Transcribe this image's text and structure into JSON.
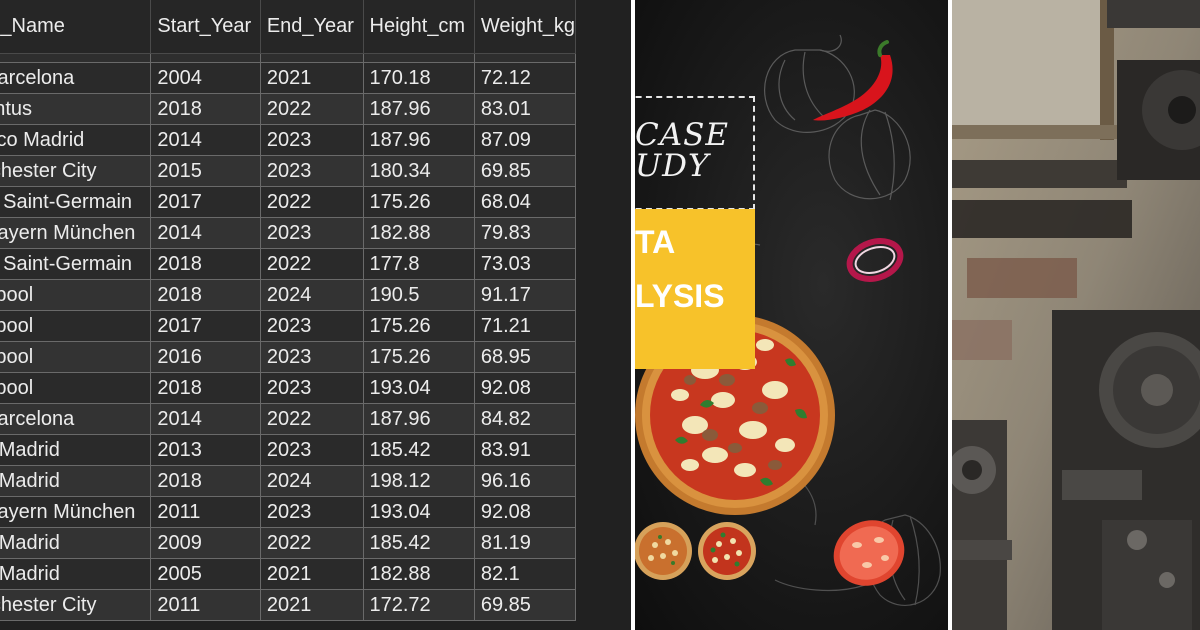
{
  "table": {
    "headers": [
      "Team_Name",
      "Start_Year",
      "End_Year",
      "Height_cm",
      "Weight_kg"
    ],
    "rows": [
      [
        "FC Barcelona",
        "2004",
        "2021",
        "170.18",
        "72.12"
      ],
      [
        "Juventus",
        "2018",
        "2022",
        "187.96",
        "83.01"
      ],
      [
        "Atletico Madrid",
        "2014",
        "2023",
        "187.96",
        "87.09"
      ],
      [
        "Manchester City",
        "2015",
        "2023",
        "180.34",
        "69.85"
      ],
      [
        "Paris Saint-Germain",
        "2017",
        "2022",
        "175.26",
        "68.04"
      ],
      [
        "FC Bayern München",
        "2014",
        "2023",
        "182.88",
        "79.83"
      ],
      [
        "Paris Saint-Germain",
        "2018",
        "2022",
        "177.8",
        "73.03"
      ],
      [
        "Liverpool",
        "2018",
        "2024",
        "190.5",
        "91.17"
      ],
      [
        "Liverpool",
        "2017",
        "2023",
        "175.26",
        "71.21"
      ],
      [
        "Liverpool",
        "2016",
        "2023",
        "175.26",
        "68.95"
      ],
      [
        "Liverpool",
        "2018",
        "2023",
        "193.04",
        "92.08"
      ],
      [
        "FC Barcelona",
        "2014",
        "2022",
        "187.96",
        "84.82"
      ],
      [
        "Real Madrid",
        "2013",
        "2023",
        "185.42",
        "83.91"
      ],
      [
        "Real Madrid",
        "2018",
        "2024",
        "198.12",
        "96.16"
      ],
      [
        "FC Bayern München",
        "2011",
        "2023",
        "193.04",
        "92.08"
      ],
      [
        "Real Madrid",
        "2009",
        "2022",
        "185.42",
        "81.19"
      ],
      [
        "Real Madrid",
        "2005",
        "2021",
        "182.88",
        "82.1"
      ],
      [
        "Manchester City",
        "2011",
        "2021",
        "172.72",
        "69.85"
      ]
    ]
  },
  "poster": {
    "case_line1": "CASE",
    "case_line2": "UDY",
    "analysis_line1": "TA",
    "analysis_line2": "LYSIS"
  },
  "colors": {
    "table_bg": "#212121",
    "poster_yellow": "#f7c22a",
    "chili_red": "#d8141c"
  }
}
